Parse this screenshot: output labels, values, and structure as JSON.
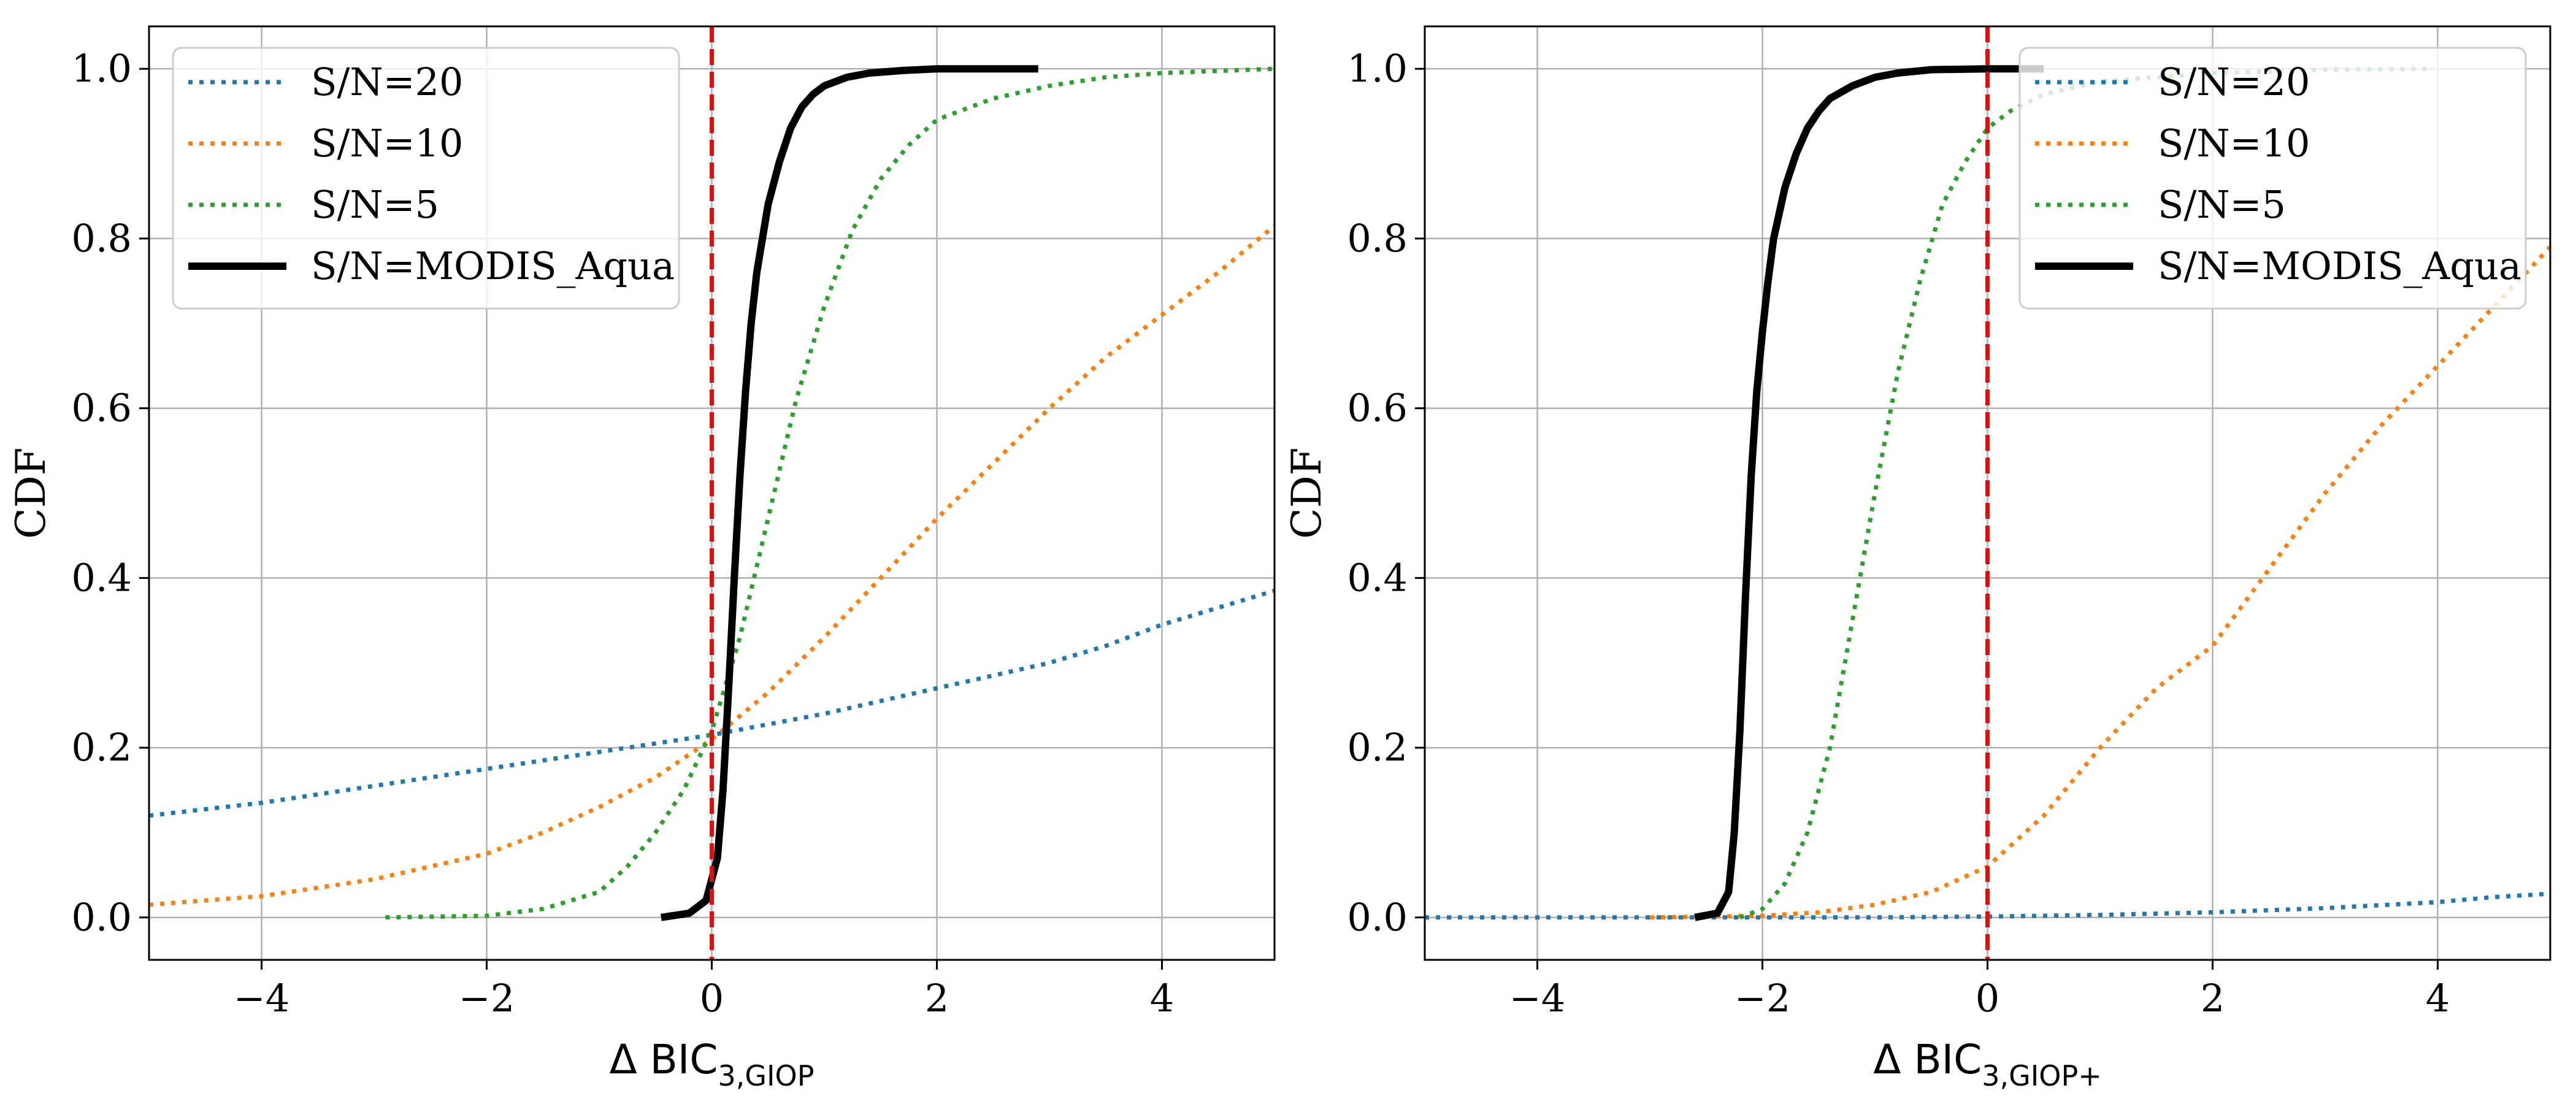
{
  "chart_data": [
    {
      "type": "line",
      "panel": "left",
      "xlabel": "Δ BIC_3,GIOP",
      "ylabel": "CDF",
      "xlim": [
        -5,
        5
      ],
      "ylim": [
        -0.05,
        1.05
      ],
      "xticks": [
        -4,
        -2,
        0,
        2,
        4
      ],
      "xtick_labels": [
        "−4",
        "−2",
        "0",
        "2",
        "4"
      ],
      "yticks": [
        0.0,
        0.2,
        0.4,
        0.6,
        0.8,
        1.0
      ],
      "ytick_labels": [
        "0.0",
        "0.2",
        "0.4",
        "0.6",
        "0.8",
        "1.0"
      ],
      "grid": true,
      "legend_position": "top-left",
      "vline": {
        "x": 0,
        "color": "#ff0000",
        "style": "dashed"
      },
      "series": [
        {
          "name": "S/N=20",
          "color": "#1f77b4",
          "style": "dotted",
          "x": [
            -5.0,
            -4.0,
            -3.0,
            -2.0,
            -1.0,
            0.0,
            1.0,
            2.0,
            3.0,
            3.5,
            4.0,
            5.0
          ],
          "y": [
            0.12,
            0.135,
            0.155,
            0.175,
            0.195,
            0.215,
            0.24,
            0.27,
            0.3,
            0.32,
            0.345,
            0.385
          ]
        },
        {
          "name": "S/N=10",
          "color": "#ff7f0e",
          "style": "dotted",
          "x": [
            -5.0,
            -4.0,
            -3.0,
            -2.0,
            -1.5,
            -1.0,
            -0.5,
            0.0,
            0.5,
            1.0,
            1.5,
            2.0,
            2.5,
            3.0,
            3.5,
            4.0,
            4.5,
            5.0
          ],
          "y": [
            0.015,
            0.025,
            0.045,
            0.075,
            0.1,
            0.13,
            0.165,
            0.21,
            0.265,
            0.33,
            0.4,
            0.47,
            0.535,
            0.6,
            0.66,
            0.71,
            0.76,
            0.815
          ]
        },
        {
          "name": "S/N=5",
          "color": "#2ca02c",
          "style": "dotted",
          "x": [
            -2.9,
            -2.0,
            -1.5,
            -1.0,
            -0.75,
            -0.5,
            -0.25,
            0.0,
            0.25,
            0.5,
            0.75,
            1.0,
            1.25,
            1.5,
            1.75,
            2.0,
            2.5,
            3.0,
            3.5,
            4.0,
            5.0
          ],
          "y": [
            0.0,
            0.002,
            0.01,
            0.03,
            0.06,
            0.1,
            0.15,
            0.22,
            0.33,
            0.47,
            0.61,
            0.72,
            0.81,
            0.87,
            0.91,
            0.94,
            0.965,
            0.98,
            0.99,
            0.995,
            1.0
          ]
        },
        {
          "name": "S/N=MODIS_Aqua",
          "color": "#000000",
          "style": "solid",
          "x": [
            -0.45,
            -0.2,
            -0.05,
            0.05,
            0.1,
            0.15,
            0.2,
            0.25,
            0.3,
            0.35,
            0.4,
            0.5,
            0.6,
            0.7,
            0.8,
            0.9,
            1.0,
            1.2,
            1.4,
            1.7,
            2.0,
            2.5,
            2.9
          ],
          "y": [
            0.0,
            0.005,
            0.02,
            0.07,
            0.15,
            0.27,
            0.4,
            0.52,
            0.62,
            0.7,
            0.76,
            0.84,
            0.89,
            0.93,
            0.955,
            0.97,
            0.98,
            0.99,
            0.995,
            0.998,
            1.0,
            1.0,
            1.0
          ]
        }
      ]
    },
    {
      "type": "line",
      "panel": "right",
      "xlabel": "Δ BIC_3,GIOP+",
      "ylabel": "CDF",
      "xlim": [
        -5,
        5
      ],
      "ylim": [
        -0.05,
        1.05
      ],
      "xticks": [
        -4,
        -2,
        0,
        2,
        4
      ],
      "xtick_labels": [
        "−4",
        "−2",
        "0",
        "2",
        "4"
      ],
      "yticks": [
        0.0,
        0.2,
        0.4,
        0.6,
        0.8,
        1.0
      ],
      "ytick_labels": [
        "0.0",
        "0.2",
        "0.4",
        "0.6",
        "0.8",
        "1.0"
      ],
      "grid": true,
      "legend_position": "top-right",
      "vline": {
        "x": 0,
        "color": "#ff0000",
        "style": "dashed"
      },
      "series": [
        {
          "name": "S/N=20",
          "color": "#1f77b4",
          "style": "dotted",
          "x": [
            -5.0,
            -3.0,
            -1.0,
            0.0,
            1.0,
            2.0,
            3.0,
            4.0,
            4.5,
            5.0
          ],
          "y": [
            0.0,
            0.0,
            0.0,
            0.001,
            0.003,
            0.006,
            0.011,
            0.018,
            0.024,
            0.028
          ]
        },
        {
          "name": "S/N=10",
          "color": "#ff7f0e",
          "style": "dotted",
          "x": [
            -3.0,
            -2.0,
            -1.5,
            -1.0,
            -0.5,
            0.0,
            0.5,
            1.0,
            1.5,
            2.0,
            2.5,
            3.0,
            3.5,
            4.0,
            4.5,
            5.0
          ],
          "y": [
            0.0,
            0.002,
            0.006,
            0.015,
            0.03,
            0.06,
            0.12,
            0.2,
            0.27,
            0.32,
            0.41,
            0.5,
            0.58,
            0.65,
            0.72,
            0.79
          ]
        },
        {
          "name": "S/N=5",
          "color": "#2ca02c",
          "style": "dotted",
          "x": [
            -2.2,
            -2.0,
            -1.8,
            -1.6,
            -1.4,
            -1.2,
            -1.0,
            -0.8,
            -0.6,
            -0.4,
            -0.2,
            0.0,
            0.2,
            0.5,
            1.0,
            2.0,
            3.0,
            3.9
          ],
          "y": [
            0.0,
            0.01,
            0.04,
            0.1,
            0.2,
            0.35,
            0.5,
            0.64,
            0.75,
            0.84,
            0.89,
            0.93,
            0.95,
            0.97,
            0.985,
            0.995,
            0.999,
            1.0
          ]
        },
        {
          "name": "S/N=MODIS_Aqua",
          "color": "#000000",
          "style": "solid",
          "x": [
            -2.6,
            -2.4,
            -2.3,
            -2.25,
            -2.2,
            -2.15,
            -2.1,
            -2.05,
            -2.0,
            -1.95,
            -1.9,
            -1.8,
            -1.7,
            -1.6,
            -1.5,
            -1.4,
            -1.2,
            -1.0,
            -0.8,
            -0.5,
            0.0,
            0.5
          ],
          "y": [
            0.0,
            0.005,
            0.03,
            0.1,
            0.22,
            0.38,
            0.52,
            0.62,
            0.69,
            0.75,
            0.8,
            0.86,
            0.9,
            0.93,
            0.95,
            0.965,
            0.98,
            0.99,
            0.995,
            0.999,
            1.0,
            1.0
          ]
        }
      ]
    }
  ]
}
